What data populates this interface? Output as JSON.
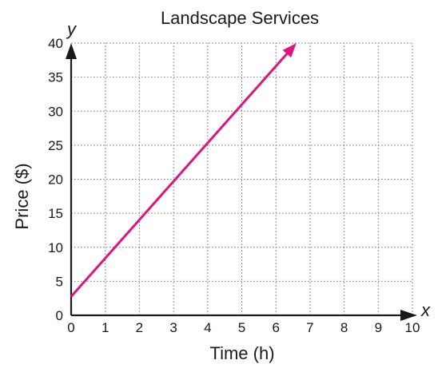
{
  "chart_data": {
    "type": "line",
    "title": "Landscape Services",
    "xlabel": "Time (h)",
    "ylabel": "Price ($)",
    "x_axis_variable": "x",
    "y_axis_variable": "y",
    "xlim": [
      0,
      10
    ],
    "ylim": [
      0,
      40
    ],
    "x_ticks": [
      0,
      1,
      2,
      3,
      4,
      5,
      6,
      7,
      8,
      9,
      10
    ],
    "y_ticks": [
      0,
      5,
      10,
      15,
      20,
      25,
      30,
      35,
      40
    ],
    "grid": true,
    "series": [
      {
        "x": [
          0,
          6.6
        ],
        "y": [
          2.75,
          40
        ],
        "color": "#e0147f",
        "arrow_end": true
      }
    ]
  }
}
